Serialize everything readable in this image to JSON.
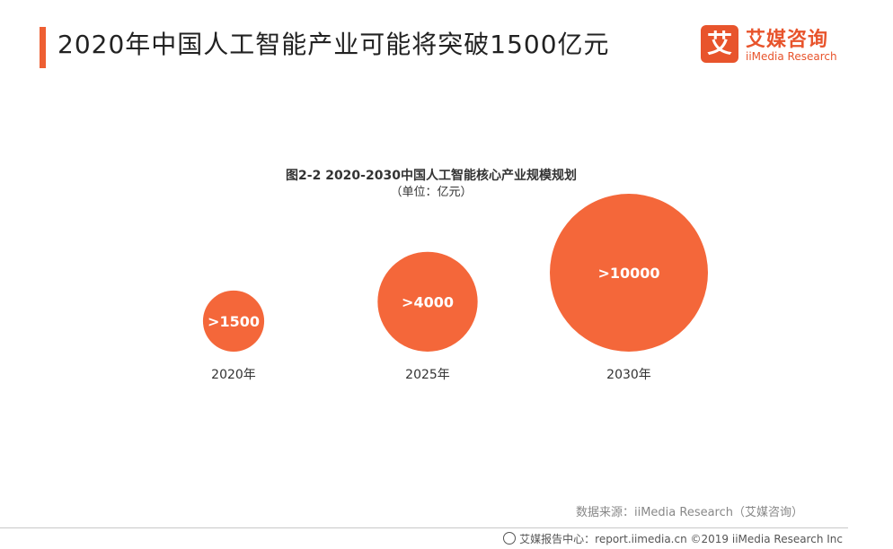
{
  "header": {
    "title": "2020年中国人工智能产业可能将突破1500亿元",
    "logo_cn": "艾媒咨询",
    "logo_en": "iiMedia Research",
    "logo_mark": "艾"
  },
  "chart_data": {
    "type": "bubble",
    "title": "图2-2 2020-2030中国人工智能核心产业规模规划",
    "subtitle": "（单位：亿元）",
    "categories": [
      "2020年",
      "2025年",
      "2030年"
    ],
    "values": [
      1500,
      4000,
      10000
    ],
    "labels": [
      ">1500",
      ">4000",
      ">10000"
    ],
    "color": "#f4673a"
  },
  "source": "数据来源：iiMedia Research（艾媒咨询）",
  "footer": "艾媒报告中心：report.iimedia.cn  ©2019  iiMedia Research  Inc"
}
